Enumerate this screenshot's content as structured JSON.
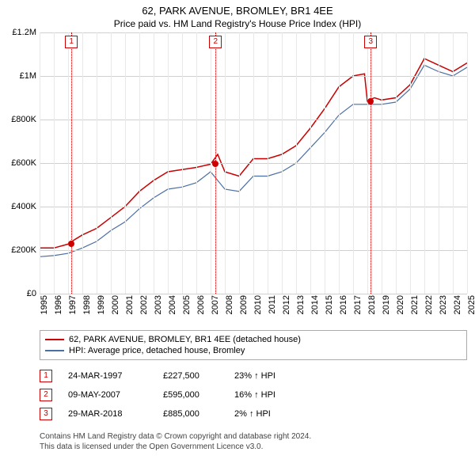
{
  "title": "62, PARK AVENUE, BROMLEY, BR1 4EE",
  "subtitle": "Price paid vs. HM Land Registry's House Price Index (HPI)",
  "chart": {
    "type": "line",
    "background_color": "#ffffff",
    "grid_color": "#d0d0d0",
    "ylim": [
      0,
      1200000
    ],
    "ytick_step": 200000,
    "y_ticks": [
      "£0",
      "£200K",
      "£400K",
      "£600K",
      "£800K",
      "£1M",
      "£1.2M"
    ],
    "x_years": [
      1995,
      1996,
      1997,
      1998,
      1999,
      2000,
      2001,
      2002,
      2003,
      2004,
      2005,
      2006,
      2007,
      2008,
      2009,
      2010,
      2011,
      2012,
      2013,
      2014,
      2015,
      2016,
      2017,
      2018,
      2019,
      2020,
      2021,
      2022,
      2023,
      2024,
      2025
    ],
    "series": [
      {
        "name": "property",
        "label": "62, PARK AVENUE, BROMLEY, BR1 4EE (detached house)",
        "color": "#cc0000",
        "line_width": 1.5,
        "data": [
          [
            1995,
            210000
          ],
          [
            1996,
            210000
          ],
          [
            1997,
            227500
          ],
          [
            1997.5,
            250000
          ],
          [
            1998,
            270000
          ],
          [
            1999,
            300000
          ],
          [
            2000,
            350000
          ],
          [
            2001,
            400000
          ],
          [
            2002,
            470000
          ],
          [
            2003,
            520000
          ],
          [
            2004,
            560000
          ],
          [
            2005,
            570000
          ],
          [
            2006,
            580000
          ],
          [
            2007,
            595000
          ],
          [
            2007.5,
            640000
          ],
          [
            2008,
            560000
          ],
          [
            2009,
            540000
          ],
          [
            2010,
            620000
          ],
          [
            2011,
            620000
          ],
          [
            2012,
            640000
          ],
          [
            2013,
            680000
          ],
          [
            2014,
            760000
          ],
          [
            2015,
            850000
          ],
          [
            2016,
            950000
          ],
          [
            2017,
            1000000
          ],
          [
            2017.8,
            1010000
          ],
          [
            2018,
            885000
          ],
          [
            2018.5,
            900000
          ],
          [
            2019,
            890000
          ],
          [
            2020,
            900000
          ],
          [
            2021,
            960000
          ],
          [
            2022,
            1080000
          ],
          [
            2023,
            1050000
          ],
          [
            2024,
            1020000
          ],
          [
            2025,
            1060000
          ]
        ]
      },
      {
        "name": "hpi",
        "label": "HPI: Average price, detached house, Bromley",
        "color": "#4a6fa5",
        "line_width": 1.2,
        "data": [
          [
            1995,
            170000
          ],
          [
            1996,
            175000
          ],
          [
            1997,
            185000
          ],
          [
            1998,
            210000
          ],
          [
            1999,
            240000
          ],
          [
            2000,
            290000
          ],
          [
            2001,
            330000
          ],
          [
            2002,
            390000
          ],
          [
            2003,
            440000
          ],
          [
            2004,
            480000
          ],
          [
            2005,
            490000
          ],
          [
            2006,
            510000
          ],
          [
            2007,
            560000
          ],
          [
            2008,
            480000
          ],
          [
            2009,
            470000
          ],
          [
            2010,
            540000
          ],
          [
            2011,
            540000
          ],
          [
            2012,
            560000
          ],
          [
            2013,
            600000
          ],
          [
            2014,
            670000
          ],
          [
            2015,
            740000
          ],
          [
            2016,
            820000
          ],
          [
            2017,
            870000
          ],
          [
            2018,
            870000
          ],
          [
            2019,
            870000
          ],
          [
            2020,
            880000
          ],
          [
            2021,
            940000
          ],
          [
            2022,
            1050000
          ],
          [
            2023,
            1020000
          ],
          [
            2024,
            1000000
          ],
          [
            2025,
            1040000
          ]
        ]
      }
    ],
    "markers": [
      {
        "n": "1",
        "year": 1997.23,
        "value": 227500,
        "color": "#cc0000"
      },
      {
        "n": "2",
        "year": 2007.35,
        "value": 595000,
        "color": "#cc0000"
      },
      {
        "n": "3",
        "year": 2018.24,
        "value": 885000,
        "color": "#cc0000"
      }
    ]
  },
  "legend": [
    {
      "color": "#cc0000",
      "label": "62, PARK AVENUE, BROMLEY, BR1 4EE (detached house)"
    },
    {
      "color": "#4a6fa5",
      "label": "HPI: Average price, detached house, Bromley"
    }
  ],
  "transactions": [
    {
      "n": "1",
      "color": "#cc0000",
      "date": "24-MAR-1997",
      "price": "£227,500",
      "delta": "23% ↑ HPI"
    },
    {
      "n": "2",
      "color": "#cc0000",
      "date": "09-MAY-2007",
      "price": "£595,000",
      "delta": "16% ↑ HPI"
    },
    {
      "n": "3",
      "color": "#cc0000",
      "date": "29-MAR-2018",
      "price": "£885,000",
      "delta": "2% ↑ HPI"
    }
  ],
  "footer_line1": "Contains HM Land Registry data © Crown copyright and database right 2024.",
  "footer_line2": "This data is licensed under the Open Government Licence v3.0."
}
